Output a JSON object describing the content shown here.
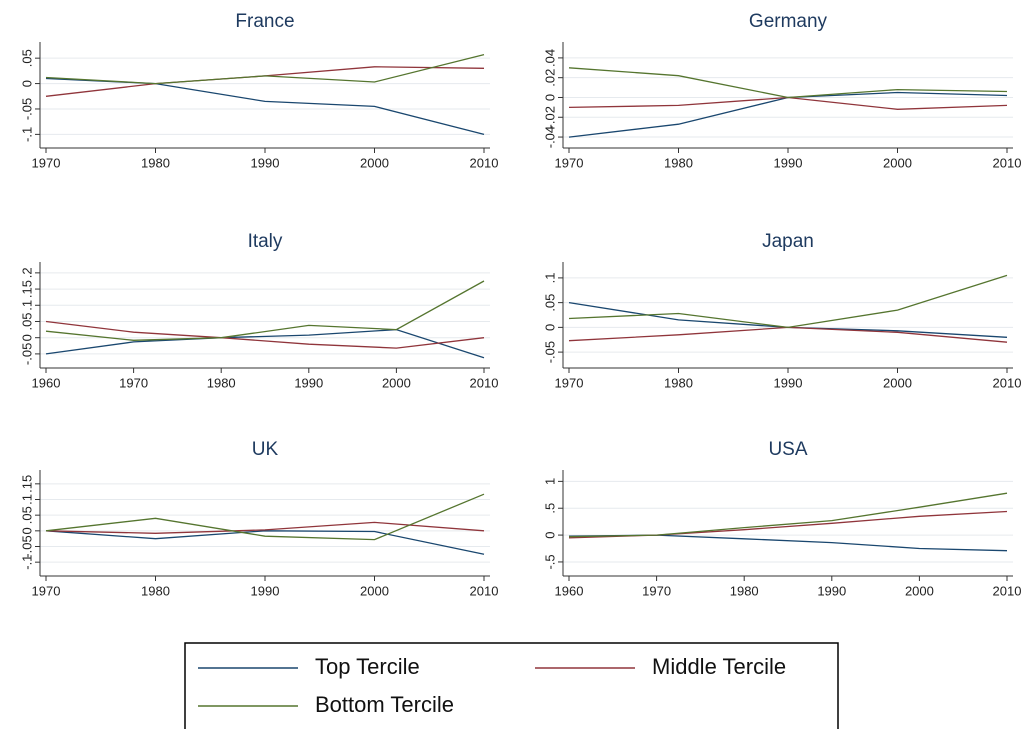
{
  "chart_data": [
    {
      "type": "line",
      "title": "France",
      "x": [
        1970,
        1980,
        1990,
        2000,
        2010
      ],
      "xlim": [
        1970,
        2010
      ],
      "xticks": [
        1970,
        1980,
        1990,
        2000,
        2010
      ],
      "ylim": [
        -0.115,
        0.07
      ],
      "yticks": [
        {
          "value": -0.1,
          "label": "-.1"
        },
        {
          "value": -0.05,
          "label": "-.05"
        },
        0,
        {
          "value": 0.05,
          "label": ".05"
        }
      ],
      "grid": true,
      "series": [
        {
          "name": "Top Tercile",
          "color": "#1a476f",
          "values": [
            0.01,
            0,
            -0.035,
            -0.045,
            -0.1
          ]
        },
        {
          "name": "Middle Tercile",
          "color": "#90353b",
          "values": [
            -0.025,
            0,
            0.015,
            0.033,
            0.03
          ]
        },
        {
          "name": "Bottom Tercile",
          "color": "#55752f",
          "values": [
            0.012,
            0,
            0.015,
            0.003,
            0.057
          ]
        }
      ]
    },
    {
      "type": "line",
      "title": "Germany",
      "x": [
        1970,
        1980,
        1990,
        2000,
        2010
      ],
      "xlim": [
        1970,
        2010
      ],
      "xticks": [
        1970,
        1980,
        1990,
        2000,
        2010
      ],
      "ylim": [
        -0.045,
        0.05
      ],
      "yticks": [
        {
          "value": -0.04,
          "label": "-.04"
        },
        {
          "value": -0.02,
          "label": "-.02"
        },
        0,
        {
          "value": 0.02,
          "label": ".02"
        },
        {
          "value": 0.04,
          "label": ".04"
        }
      ],
      "grid": true,
      "series": [
        {
          "name": "Top Tercile",
          "color": "#1a476f",
          "values": [
            -0.04,
            -0.027,
            0,
            0.005,
            0.002
          ]
        },
        {
          "name": "Middle Tercile",
          "color": "#90353b",
          "values": [
            -0.01,
            -0.008,
            0,
            -0.012,
            -0.008
          ]
        },
        {
          "name": "Bottom Tercile",
          "color": "#55752f",
          "values": [
            0.03,
            0.022,
            0,
            0.008,
            0.006
          ]
        }
      ]
    },
    {
      "type": "line",
      "title": "Italy",
      "x": [
        1960,
        1970,
        1980,
        1990,
        2000,
        2010
      ],
      "xlim": [
        1960,
        2010
      ],
      "xticks": [
        1960,
        1970,
        1980,
        1990,
        2000,
        2010
      ],
      "ylim": [
        -0.075,
        0.215
      ],
      "yticks": [
        {
          "value": -0.05,
          "label": "-.05"
        },
        0,
        {
          "value": 0.05,
          "label": ".05"
        },
        {
          "value": 0.1,
          "label": ".1"
        },
        {
          "value": 0.15,
          "label": ".15"
        },
        {
          "value": 0.2,
          "label": ".2"
        }
      ],
      "grid": true,
      "series": [
        {
          "name": "Top Tercile",
          "color": "#1a476f",
          "values": [
            -0.05,
            -0.013,
            0,
            0.008,
            0.025,
            -0.062
          ]
        },
        {
          "name": "Middle Tercile",
          "color": "#90353b",
          "values": [
            0.05,
            0.017,
            0,
            -0.02,
            -0.032,
            0
          ]
        },
        {
          "name": "Bottom Tercile",
          "color": "#55752f",
          "values": [
            0.02,
            -0.008,
            0,
            0.038,
            0.025,
            0.175
          ]
        }
      ]
    },
    {
      "type": "line",
      "title": "Japan",
      "x": [
        1970,
        1980,
        1990,
        2000,
        2010
      ],
      "xlim": [
        1970,
        2010
      ],
      "xticks": [
        1970,
        1980,
        1990,
        2000,
        2010
      ],
      "ylim": [
        -0.07,
        0.12
      ],
      "yticks": [
        {
          "value": -0.05,
          "label": "-.05"
        },
        0,
        {
          "value": 0.05,
          "label": ".05"
        },
        {
          "value": 0.1,
          "label": ".1"
        }
      ],
      "grid": true,
      "series": [
        {
          "name": "Top Tercile",
          "color": "#1a476f",
          "values": [
            0.05,
            0.015,
            0,
            -0.007,
            -0.02
          ]
        },
        {
          "name": "Middle Tercile",
          "color": "#90353b",
          "values": [
            -0.027,
            -0.015,
            0,
            -0.01,
            -0.03
          ]
        },
        {
          "name": "Bottom Tercile",
          "color": "#55752f",
          "values": [
            0.018,
            0.028,
            0,
            0.035,
            0.105
          ]
        }
      ]
    },
    {
      "type": "line",
      "title": "UK",
      "x": [
        1970,
        1980,
        1990,
        2000,
        2010
      ],
      "xlim": [
        1970,
        2010
      ],
      "xticks": [
        1970,
        1980,
        1990,
        2000,
        2010
      ],
      "ylim": [
        -0.125,
        0.175
      ],
      "yticks": [
        {
          "value": -0.1,
          "label": "-.1"
        },
        {
          "value": -0.05,
          "label": "-.05"
        },
        0,
        {
          "value": 0.05,
          "label": ".05"
        },
        {
          "value": 0.1,
          "label": ".1"
        },
        {
          "value": 0.15,
          "label": ".15"
        }
      ],
      "grid": true,
      "series": [
        {
          "name": "Top Tercile",
          "color": "#1a476f",
          "values": [
            0,
            -0.025,
            0,
            -0.002,
            -0.075
          ]
        },
        {
          "name": "Middle Tercile",
          "color": "#90353b",
          "values": [
            0,
            -0.008,
            0.003,
            0.027,
            0
          ]
        },
        {
          "name": "Bottom Tercile",
          "color": "#55752f",
          "values": [
            0,
            0.04,
            -0.017,
            -0.028,
            0.117
          ]
        }
      ]
    },
    {
      "type": "line",
      "title": "USA",
      "x": [
        1960,
        1970,
        1980,
        1990,
        2000,
        2010
      ],
      "xlim": [
        1960,
        2010
      ],
      "xticks": [
        1960,
        1970,
        1980,
        1990,
        2000,
        2010
      ],
      "ylim": [
        -0.65,
        1.1
      ],
      "yticks": [
        {
          "value": -0.5,
          "label": "-.5"
        },
        0,
        {
          "value": 0.5,
          "label": ".5"
        },
        1
      ],
      "grid": true,
      "series": [
        {
          "name": "Top Tercile",
          "color": "#1a476f",
          "values": [
            -0.02,
            0,
            -0.07,
            -0.14,
            -0.25,
            -0.29
          ]
        },
        {
          "name": "Middle Tercile",
          "color": "#90353b",
          "values": [
            -0.05,
            0,
            0.1,
            0.22,
            0.35,
            0.44
          ]
        },
        {
          "name": "Bottom Tercile",
          "color": "#55752f",
          "values": [
            -0.03,
            0,
            0.14,
            0.27,
            0.52,
            0.78
          ]
        }
      ]
    }
  ]
}
